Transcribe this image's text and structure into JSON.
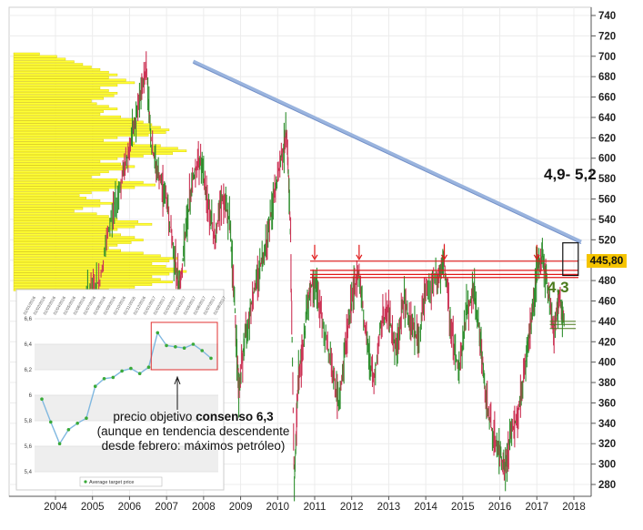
{
  "chart_data": [
    {
      "type": "candlestick",
      "x_ticks": [
        "2004",
        "2005",
        "2006",
        "2007",
        "2008",
        "2009",
        "2010",
        "2011",
        "2012",
        "2013",
        "2014",
        "2015",
        "2016",
        "2017",
        "2018"
      ],
      "y_ticks": [
        280,
        300,
        320,
        340,
        360,
        380,
        400,
        420,
        440,
        460,
        480,
        500,
        520,
        540,
        560,
        580,
        600,
        620,
        640,
        660,
        680,
        700,
        720,
        740
      ],
      "ylim": [
        270,
        745
      ],
      "grid": true,
      "last_price_label": "445,80",
      "last_price": 445.8,
      "price_path": [
        [
          2004.25,
          410
        ],
        [
          2004.6,
          430
        ],
        [
          2004.9,
          470
        ],
        [
          2005.2,
          480
        ],
        [
          2005.5,
          540
        ],
        [
          2005.8,
          580
        ],
        [
          2006.0,
          610
        ],
        [
          2006.25,
          650
        ],
        [
          2006.45,
          690
        ],
        [
          2006.6,
          610
        ],
        [
          2006.8,
          580
        ],
        [
          2007.0,
          560
        ],
        [
          2007.2,
          505
        ],
        [
          2007.35,
          470
        ],
        [
          2007.5,
          520
        ],
        [
          2007.7,
          580
        ],
        [
          2007.9,
          600
        ],
        [
          2008.1,
          560
        ],
        [
          2008.3,
          520
        ],
        [
          2008.5,
          560
        ],
        [
          2008.7,
          540
        ],
        [
          2008.85,
          450
        ],
        [
          2008.95,
          370
        ],
        [
          2009.1,
          420
        ],
        [
          2009.3,
          460
        ],
        [
          2009.5,
          490
        ],
        [
          2009.7,
          520
        ],
        [
          2009.9,
          560
        ],
        [
          2010.1,
          600
        ],
        [
          2010.25,
          625
        ],
        [
          2010.35,
          520
        ],
        [
          2010.45,
          280
        ],
        [
          2010.55,
          380
        ],
        [
          2010.7,
          420
        ],
        [
          2010.85,
          470
        ],
        [
          2011.0,
          480
        ],
        [
          2011.2,
          440
        ],
        [
          2011.45,
          400
        ],
        [
          2011.65,
          355
        ],
        [
          2011.85,
          420
        ],
        [
          2012.0,
          460
        ],
        [
          2012.2,
          490
        ],
        [
          2012.4,
          420
        ],
        [
          2012.6,
          380
        ],
        [
          2012.8,
          440
        ],
        [
          2013.0,
          450
        ],
        [
          2013.2,
          410
        ],
        [
          2013.4,
          460
        ],
        [
          2013.6,
          440
        ],
        [
          2013.8,
          420
        ],
        [
          2014.0,
          470
        ],
        [
          2014.3,
          480
        ],
        [
          2014.5,
          495
        ],
        [
          2014.7,
          430
        ],
        [
          2014.9,
          390
        ],
        [
          2015.1,
          450
        ],
        [
          2015.3,
          470
        ],
        [
          2015.45,
          430
        ],
        [
          2015.6,
          370
        ],
        [
          2015.8,
          330
        ],
        [
          2016.0,
          310
        ],
        [
          2016.15,
          295
        ],
        [
          2016.3,
          330
        ],
        [
          2016.5,
          350
        ],
        [
          2016.7,
          400
        ],
        [
          2016.85,
          440
        ],
        [
          2017.0,
          490
        ],
        [
          2017.15,
          505
        ],
        [
          2017.3,
          470
        ],
        [
          2017.45,
          430
        ],
        [
          2017.6,
          460
        ],
        [
          2017.75,
          445.8
        ]
      ],
      "trendline": [
        [
          2006.0,
          695
        ],
        [
          2018.0,
          518
        ]
      ],
      "resistance_levels": [
        499,
        490,
        486,
        483
      ],
      "resistance_arrows_x": [
        2011.0,
        2012.2,
        2014.5,
        2017.0
      ],
      "support_levels": [
        440,
        437,
        433
      ],
      "target_box": [
        517,
        485
      ],
      "volume_profile_lengths": [
        0.15,
        0.25,
        0.3,
        0.35,
        0.4,
        0.45,
        0.5,
        0.55,
        0.6,
        0.55,
        0.65,
        0.7,
        0.6,
        0.5,
        0.55,
        0.6,
        0.58,
        0.52,
        0.45,
        0.48,
        0.55,
        0.6,
        0.52,
        0.5,
        0.62,
        0.7,
        0.75,
        0.8,
        0.85,
        0.9,
        0.88,
        0.78,
        0.6,
        0.52,
        0.7,
        0.85,
        0.95,
        1.0,
        0.92,
        0.75,
        0.6,
        0.5,
        0.62,
        0.7,
        0.65,
        0.55,
        0.5,
        0.45,
        0.6,
        0.75,
        0.82,
        0.7,
        0.55,
        0.45,
        0.38,
        0.42,
        0.5,
        0.58,
        0.5,
        0.4,
        0.35,
        0.48,
        0.55,
        0.6,
        0.72,
        0.8,
        0.7,
        0.6,
        0.55,
        0.62,
        0.7,
        0.75,
        0.68,
        0.6,
        0.55,
        0.62,
        0.75,
        0.85,
        0.95,
        0.9,
        0.8,
        0.88,
        0.95,
        1.0,
        0.9,
        0.8,
        0.85,
        0.92,
        0.8,
        0.7,
        0.55
      ]
    },
    {
      "type": "line",
      "y_ticks": [
        "5,4",
        "5,6",
        "5,8",
        "6",
        "6,2",
        "6,4",
        "6,6"
      ],
      "ylim": [
        5.4,
        6.6
      ],
      "values": [
        5.97,
        5.79,
        5.62,
        5.73,
        5.78,
        5.82,
        6.07,
        6.13,
        6.14,
        6.19,
        6.21,
        6.17,
        6.22,
        6.49,
        6.39,
        6.38,
        6.37,
        6.4,
        6.35,
        6.29
      ],
      "series": [
        {
          "name": "Average target price",
          "values": [
            5.97,
            5.79,
            5.62,
            5.73,
            5.78,
            5.82,
            6.07,
            6.13,
            6.14,
            6.19,
            6.21,
            6.17,
            6.22,
            6.49,
            6.39,
            6.38,
            6.37,
            6.4,
            6.35,
            6.29
          ]
        }
      ],
      "highlight_range": [
        13,
        19
      ],
      "grid": true,
      "legend": "bottom",
      "date_labels": [
        "01/01/2016",
        "01/02/2016",
        "01/03/2016",
        "01/04/2016",
        "01/05/2016",
        "01/06/2016",
        "01/07/2016",
        "01/08/2016",
        "01/09/2016",
        "01/10/2016",
        "01/11/2016",
        "01/12/2016",
        "01/01/2017",
        "01/02/2017",
        "01/03/2017",
        "01/04/2017",
        "01/05/2017",
        "01/06/2017",
        "01/07/2017",
        "01/08/2017"
      ]
    }
  ],
  "annotations": {
    "upper_target": "4,9- 5,2",
    "lower_target": "4,3",
    "consensus_line1": "precio objetivo",
    "consensus_bold": "consenso 6,3",
    "consensus_line2": "(aunque en tendencia descendente desde febrero: máximos petróleo)"
  },
  "colors": {
    "volume": "#ffff33",
    "trendline": "#9ab4de",
    "resistance": "#e01818",
    "support": "#4a7a1c",
    "price": "#cc3355",
    "target_series": "#80b8e0",
    "target_marker": "#3aaa3a",
    "highlight_box": "#e03030"
  }
}
